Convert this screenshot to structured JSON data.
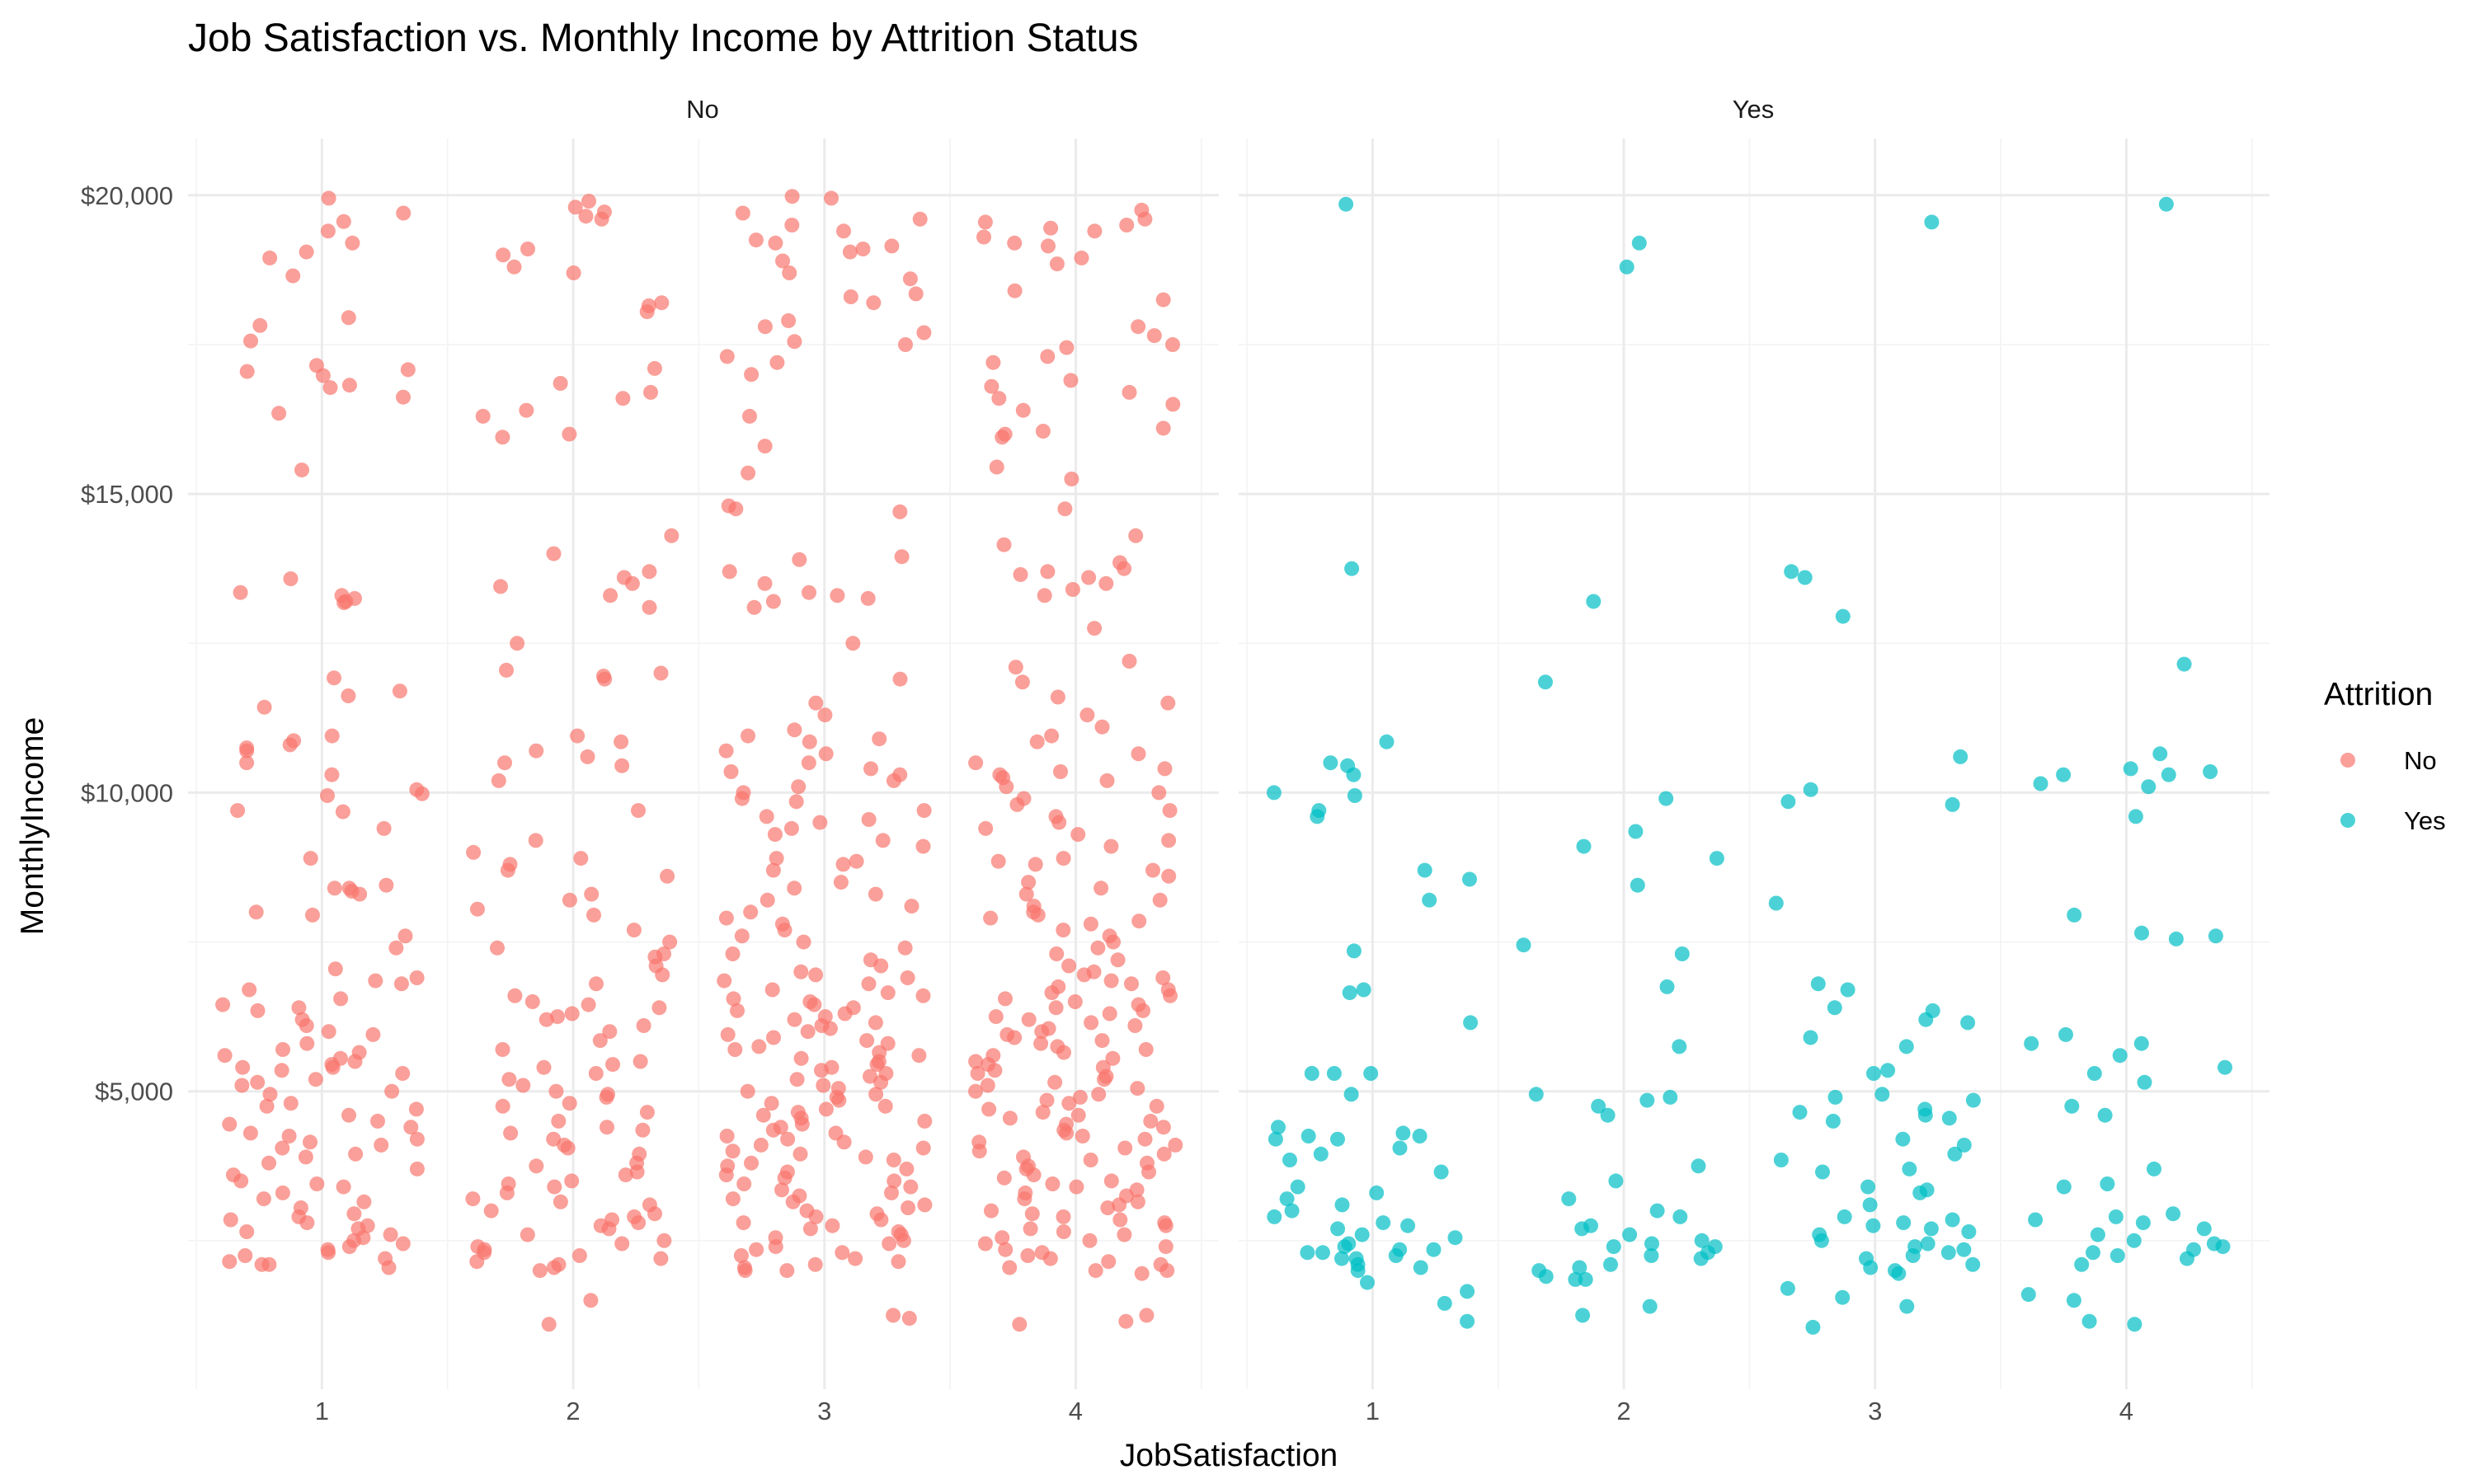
{
  "chart_data": {
    "type": "scatter",
    "title": "Job Satisfaction vs. Monthly Income by Attrition Status",
    "xlabel": "JobSatisfaction",
    "ylabel": "MonthlyIncome",
    "facets": [
      "No",
      "Yes"
    ],
    "x_ticks": [
      "1",
      "2",
      "3",
      "4"
    ],
    "xlim": [
      0.5,
      4.5
    ],
    "y_ticks": [
      "$5,000",
      "$10,000",
      "$15,000",
      "$20,000"
    ],
    "y_tick_values": [
      5000,
      10000,
      15000,
      20000
    ],
    "ylim": [
      0,
      20000
    ],
    "jitter_width": 0.4,
    "grid": true,
    "legend": {
      "title": "Attrition",
      "position": "right",
      "entries": [
        {
          "label": "No",
          "color": "#F8766D"
        },
        {
          "label": "Yes",
          "color": "#00BFC4"
        }
      ]
    },
    "series": [
      {
        "facet": "No",
        "name": "No",
        "color": "#F8766D",
        "groups": [
          {
            "x": 1,
            "y": [
              19950,
              19700,
              19560,
              19400,
              19200,
              19050,
              18950,
              18650,
              17950,
              17820,
              17560,
              17150,
              17080,
              17050,
              16980,
              16820,
              16780,
              16620,
              16350,
              15400,
              13580,
              13350,
              13300,
              13250,
              13200,
              13180,
              11920,
              11700,
              11620,
              11430,
              10950,
              10870,
              10800,
              10750,
              10700,
              10500,
              10300,
              10050,
              9980,
              9950,
              9700,
              9680,
              9400,
              8900,
              8450,
              8400,
              8400,
              8350,
              8300,
              8000,
              7950,
              7600,
              7400,
              7050,
              6900,
              6850,
              6800,
              6700,
              6550,
              6450,
              6400,
              6350,
              6200,
              6100,
              6000,
              5950,
              5800,
              5700,
              5650,
              5600,
              5550,
              5500,
              5450,
              5400,
              5400,
              5350,
              5300,
              5200,
              5150,
              5100,
              5000,
              4950,
              4800,
              4750,
              4700,
              4600,
              4500,
              4450,
              4400,
              4300,
              4250,
              4200,
              4150,
              4100,
              4050,
              3950,
              3900,
              3800,
              3700,
              3600,
              3500,
              3450,
              3400,
              3300,
              3200,
              3150,
              3050,
              2950,
              2900,
              2850,
              2800,
              2750,
              2700,
              2650,
              2600,
              2550,
              2500,
              2450,
              2400,
              2350,
              2300,
              2250,
              2200,
              2150,
              2100,
              2100,
              2050
            ]
          },
          {
            "x": 2,
            "y": [
              19900,
              19800,
              19720,
              19650,
              19600,
              19100,
              19000,
              18800,
              18700,
              18200,
              18150,
              18050,
              17100,
              16850,
              16700,
              16600,
              16400,
              16300,
              16000,
              15950,
              14300,
              14000,
              13700,
              13600,
              13500,
              13450,
              13300,
              13100,
              12500,
              12050,
              12000,
              11950,
              11900,
              10950,
              10850,
              10700,
              10600,
              10500,
              10450,
              10200,
              9700,
              9200,
              9000,
              8900,
              8800,
              8700,
              8600,
              8300,
              8200,
              8050,
              7950,
              7700,
              7500,
              7400,
              7300,
              7250,
              7100,
              6950,
              6800,
              6600,
              6500,
              6450,
              6400,
              6300,
              6250,
              6200,
              6100,
              6000,
              5850,
              5700,
              5500,
              5450,
              5400,
              5300,
              5200,
              5100,
              5000,
              4950,
              4900,
              4800,
              4750,
              4650,
              4500,
              4400,
              4350,
              4300,
              4200,
              4100,
              4050,
              3950,
              3800,
              3750,
              3650,
              3600,
              3500,
              3450,
              3400,
              3300,
              3200,
              3150,
              3100,
              3000,
              2950,
              2900,
              2850,
              2800,
              2750,
              2700,
              2600,
              2500,
              2450,
              2400,
              2350,
              2300,
              2250,
              2200,
              2150,
              2100,
              2050,
              2000,
              1500,
              1100
            ]
          },
          {
            "x": 3,
            "y": [
              19980,
              19950,
              19700,
              19600,
              19500,
              19400,
              19250,
              19200,
              19150,
              19100,
              19050,
              18900,
              18700,
              18600,
              18350,
              18300,
              18200,
              17900,
              17800,
              17700,
              17550,
              17500,
              17300,
              17200,
              17000,
              16300,
              15800,
              15350,
              14800,
              14750,
              14700,
              13950,
              13900,
              13700,
              13500,
              13350,
              13300,
              13250,
              13200,
              13100,
              12500,
              11900,
              11500,
              11300,
              11050,
              10950,
              10900,
              10850,
              10700,
              10650,
              10500,
              10400,
              10350,
              10300,
              10200,
              10100,
              10000,
              9900,
              9850,
              9700,
              9600,
              9550,
              9500,
              9400,
              9300,
              9200,
              9100,
              8900,
              8850,
              8800,
              8700,
              8500,
              8400,
              8300,
              8200,
              8100,
              8000,
              7900,
              7800,
              7700,
              7600,
              7500,
              7400,
              7300,
              7200,
              7100,
              7000,
              6950,
              6900,
              6850,
              6800,
              6700,
              6650,
              6600,
              6550,
              6500,
              6450,
              6400,
              6350,
              6300,
              6250,
              6200,
              6150,
              6100,
              6050,
              6000,
              5950,
              5900,
              5850,
              5800,
              5750,
              5700,
              5650,
              5600,
              5550,
              5500,
              5450,
              5400,
              5350,
              5300,
              5250,
              5200,
              5150,
              5100,
              5050,
              5000,
              4950,
              4900,
              4850,
              4800,
              4750,
              4700,
              4650,
              4600,
              4550,
              4500,
              4450,
              4400,
              4350,
              4300,
              4250,
              4200,
              4150,
              4100,
              4050,
              4000,
              3950,
              3900,
              3850,
              3800,
              3750,
              3700,
              3650,
              3600,
              3550,
              3500,
              3450,
              3400,
              3350,
              3300,
              3250,
              3200,
              3150,
              3100,
              3050,
              3000,
              2950,
              2900,
              2850,
              2800,
              2750,
              2700,
              2650,
              2600,
              2550,
              2500,
              2450,
              2400,
              2350,
              2300,
              2250,
              2200,
              2150,
              2100,
              2050,
              2000,
              2000,
              1250,
              1200
            ]
          },
          {
            "x": 4,
            "y": [
              19750,
              19600,
              19550,
              19500,
              19450,
              19400,
              19300,
              19200,
              19150,
              18950,
              18850,
              18400,
              18250,
              17800,
              17650,
              17500,
              17450,
              17300,
              17200,
              16900,
              16800,
              16700,
              16600,
              16500,
              16400,
              16100,
              16050,
              16000,
              15950,
              15450,
              15250,
              14750,
              14300,
              14150,
              13850,
              13750,
              13700,
              13650,
              13600,
              13500,
              13400,
              13300,
              12750,
              12200,
              12100,
              11850,
              11600,
              11500,
              11300,
              11100,
              10950,
              10850,
              10650,
              10500,
              10400,
              10350,
              10300,
              10250,
              10200,
              10100,
              10000,
              9900,
              9800,
              9700,
              9600,
              9500,
              9400,
              9300,
              9200,
              9100,
              8900,
              8850,
              8800,
              8700,
              8600,
              8500,
              8400,
              8300,
              8200,
              8100,
              8000,
              7950,
              7900,
              7850,
              7800,
              7700,
              7600,
              7500,
              7400,
              7300,
              7200,
              7100,
              7000,
              6950,
              6900,
              6850,
              6800,
              6750,
              6700,
              6650,
              6600,
              6550,
              6500,
              6450,
              6400,
              6350,
              6300,
              6250,
              6200,
              6150,
              6100,
              6050,
              6000,
              5950,
              5900,
              5850,
              5800,
              5750,
              5700,
              5650,
              5600,
              5550,
              5500,
              5450,
              5400,
              5350,
              5300,
              5250,
              5200,
              5150,
              5100,
              5050,
              5000,
              4950,
              4900,
              4850,
              4800,
              4750,
              4700,
              4650,
              4600,
              4550,
              4500,
              4450,
              4400,
              4350,
              4300,
              4250,
              4200,
              4150,
              4100,
              4050,
              4000,
              3950,
              3900,
              3850,
              3800,
              3750,
              3700,
              3650,
              3600,
              3550,
              3500,
              3450,
              3400,
              3350,
              3300,
              3250,
              3200,
              3150,
              3100,
              3050,
              3000,
              2950,
              2900,
              2850,
              2800,
              2750,
              2700,
              2650,
              2600,
              2550,
              2500,
              2450,
              2400,
              2350,
              2300,
              2250,
              2200,
              2150,
              2100,
              2050,
              2000,
              2000,
              1950,
              1250,
              1150,
              1100
            ]
          }
        ]
      },
      {
        "facet": "Yes",
        "name": "Yes",
        "color": "#00BFC4",
        "groups": [
          {
            "x": 1,
            "y": [
              19850,
              13750,
              10850,
              10500,
              10450,
              10300,
              10000,
              9950,
              9700,
              9600,
              8700,
              8550,
              8200,
              7350,
              6700,
              6650,
              6150,
              5300,
              5300,
              5300,
              4950,
              4400,
              4300,
              4250,
              4250,
              4200,
              4200,
              4050,
              3950,
              3850,
              3650,
              3400,
              3300,
              3200,
              3100,
              3000,
              2900,
              2800,
              2750,
              2700,
              2600,
              2550,
              2450,
              2400,
              2350,
              2350,
              2300,
              2300,
              2250,
              2200,
              2200,
              2100,
              2050,
              2000,
              1800,
              1650,
              1450,
              1150
            ]
          },
          {
            "x": 2,
            "y": [
              19200,
              18800,
              13200,
              11850,
              9900,
              9350,
              9100,
              8900,
              8450,
              7450,
              7300,
              6750,
              5750,
              4950,
              4900,
              4850,
              4750,
              4600,
              3750,
              3500,
              3200,
              3000,
              2900,
              2750,
              2700,
              2600,
              2500,
              2450,
              2400,
              2400,
              2300,
              2250,
              2200,
              2100,
              2050,
              2000,
              1900,
              1850,
              1850,
              1400,
              1250
            ]
          },
          {
            "x": 3,
            "y": [
              19550,
              13700,
              13600,
              12950,
              10600,
              10050,
              9850,
              9800,
              8150,
              6800,
              6700,
              6400,
              6350,
              6200,
              6150,
              5900,
              5750,
              5350,
              5300,
              4950,
              4900,
              4850,
              4700,
              4650,
              4600,
              4550,
              4500,
              4200,
              4100,
              3950,
              3850,
              3700,
              3650,
              3400,
              3350,
              3300,
              3100,
              2900,
              2850,
              2800,
              2750,
              2700,
              2650,
              2600,
              2500,
              2450,
              2400,
              2350,
              2300,
              2250,
              2200,
              2100,
              2050,
              2000,
              1950,
              1700,
              1550,
              1400,
              1050
            ]
          },
          {
            "x": 4,
            "y": [
              19850,
              12150,
              10650,
              10400,
              10350,
              10300,
              10300,
              10150,
              10100,
              9600,
              7950,
              7650,
              7600,
              7550,
              5950,
              5800,
              5800,
              5600,
              5400,
              5300,
              5150,
              4750,
              4600,
              3700,
              3450,
              3400,
              2950,
              2900,
              2850,
              2800,
              2700,
              2600,
              2500,
              2450,
              2400,
              2350,
              2300,
              2250,
              2200,
              2100,
              1600,
              1500,
              1150,
              1100
            ]
          }
        ]
      }
    ]
  }
}
